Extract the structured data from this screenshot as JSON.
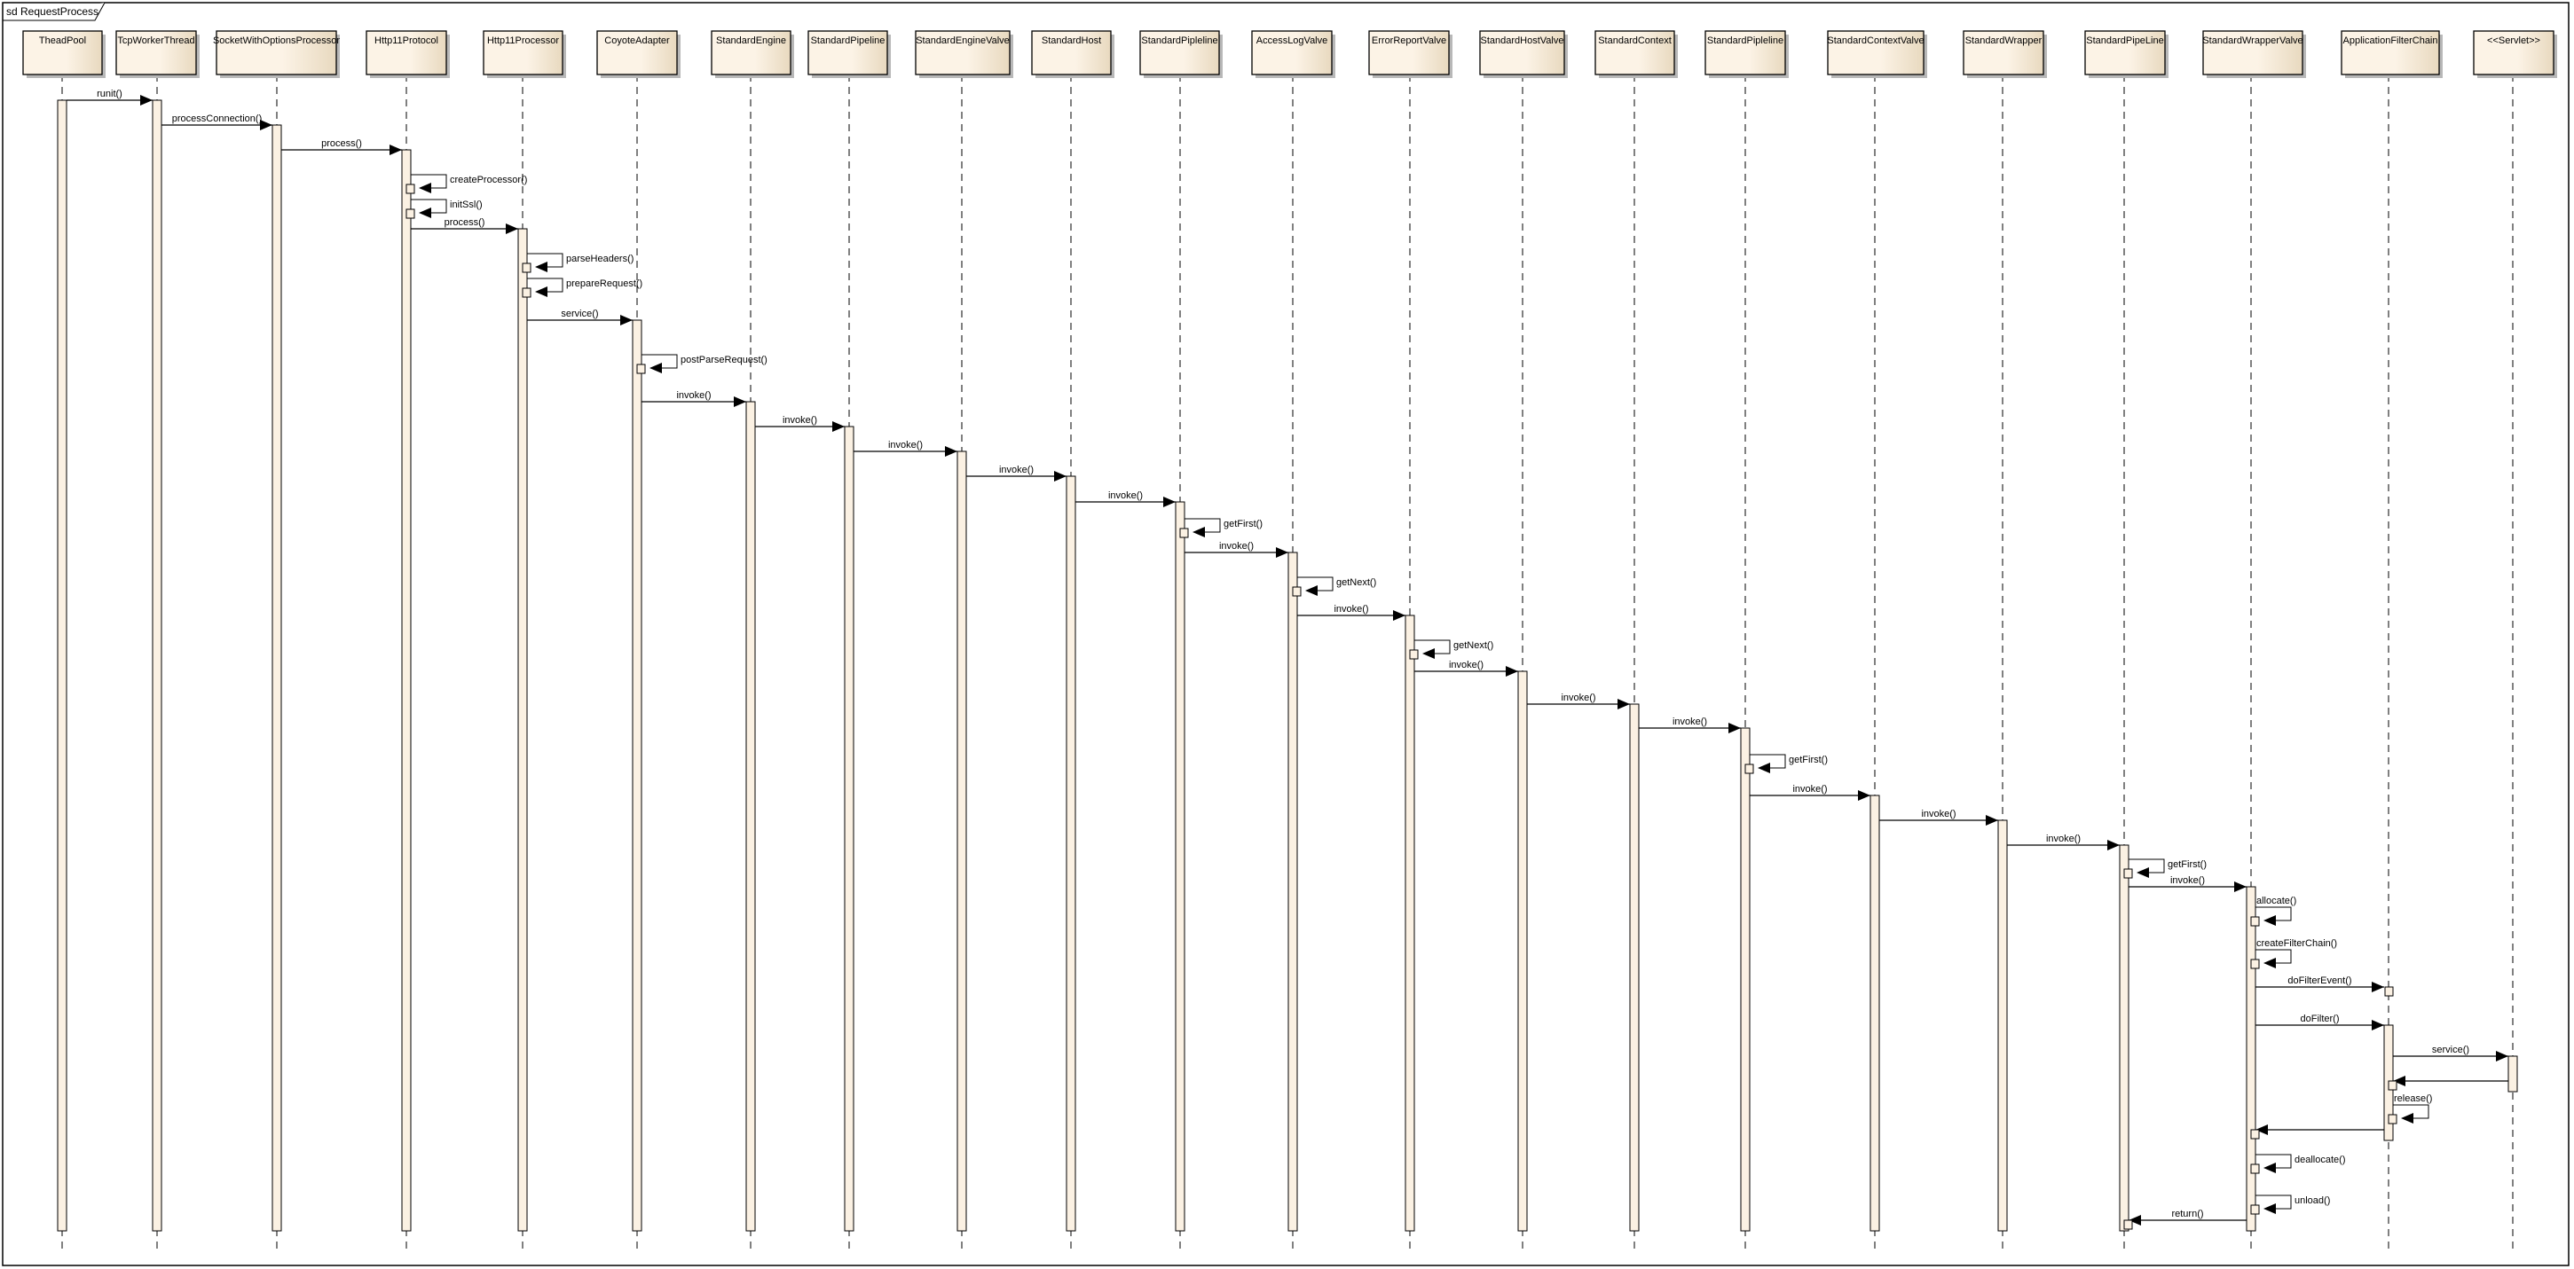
{
  "diagram": {
    "frame_title": "sd RequestProcess",
    "colors": {
      "box_light": "#fcf3e6",
      "box_dark": "#e8d9bf",
      "activation_fill": "#fbf1e3",
      "line": "#000000",
      "shadow": "#b8b8b8"
    },
    "participants": [
      "TheadPool",
      "TcpWorkerThread",
      "SocketWithOptionsProcessor",
      "Http11Protocol",
      "Http11Processor",
      "CoyoteAdapter",
      "StandardEngine",
      "StandardPipeline",
      "StandardEngineValve",
      "StandardHost",
      "StandardPipleline",
      "AccessLogValve",
      "ErrorReportValve",
      "StandardHostValve",
      "StandardContext",
      "StandardPipleline",
      "StandardContextValve",
      "StandardWrapper",
      "StandardPipeLine",
      "StandardWrapperValve",
      "ApplicationFilterChain",
      "<<Servlet>>"
    ],
    "messages": [
      {
        "from": 0,
        "to": 1,
        "label": "runit()"
      },
      {
        "from": 1,
        "to": 2,
        "label": "processConnection()"
      },
      {
        "from": 2,
        "to": 3,
        "label": "process()"
      },
      {
        "from": 3,
        "to": 3,
        "label": "createProcessor()",
        "label_side": "right"
      },
      {
        "from": 3,
        "to": 3,
        "label": "initSsl()",
        "label_side": "right"
      },
      {
        "from": 3,
        "to": 4,
        "label": "process()"
      },
      {
        "from": 4,
        "to": 4,
        "label": "parseHeaders()",
        "label_side": "right"
      },
      {
        "from": 4,
        "to": 4,
        "label": "prepareRequest()",
        "label_side": "right"
      },
      {
        "from": 4,
        "to": 5,
        "label": "service()"
      },
      {
        "from": 5,
        "to": 5,
        "label": "postParseRequest()",
        "label_side": "right"
      },
      {
        "from": 5,
        "to": 6,
        "label": "invoke()"
      },
      {
        "from": 6,
        "to": 7,
        "label": "invoke()"
      },
      {
        "from": 7,
        "to": 8,
        "label": "invoke()"
      },
      {
        "from": 8,
        "to": 9,
        "label": "invoke()"
      },
      {
        "from": 9,
        "to": 10,
        "label": "invoke()"
      },
      {
        "from": 10,
        "to": 10,
        "label": "getFirst()",
        "label_side": "right"
      },
      {
        "from": 10,
        "to": 11,
        "label": "invoke()"
      },
      {
        "from": 11,
        "to": 11,
        "label": "getNext()",
        "label_side": "right"
      },
      {
        "from": 11,
        "to": 12,
        "label": "invoke()"
      },
      {
        "from": 12,
        "to": 12,
        "label": "getNext()",
        "label_side": "right"
      },
      {
        "from": 12,
        "to": 13,
        "label": "invoke()"
      },
      {
        "from": 13,
        "to": 14,
        "label": "invoke()"
      },
      {
        "from": 14,
        "to": 15,
        "label": "invoke()"
      },
      {
        "from": 15,
        "to": 15,
        "label": "getFirst()",
        "label_side": "right"
      },
      {
        "from": 15,
        "to": 16,
        "label": "invoke()"
      },
      {
        "from": 16,
        "to": 17,
        "label": "invoke()"
      },
      {
        "from": 17,
        "to": 18,
        "label": "invoke()"
      },
      {
        "from": 18,
        "to": 18,
        "label": "getFirst()",
        "label_side": "right"
      },
      {
        "from": 18,
        "to": 19,
        "label": "invoke()"
      },
      {
        "from": 19,
        "to": 19,
        "label": "allocate()",
        "label_side": "above"
      },
      {
        "from": 19,
        "to": 19,
        "label": "createFilterChain()",
        "label_side": "above"
      },
      {
        "from": 19,
        "to": 20,
        "label": "doFilterEvent()"
      },
      {
        "from": 19,
        "to": 20,
        "label": "doFilter()"
      },
      {
        "from": 20,
        "to": 21,
        "label": "service()"
      },
      {
        "from": 21,
        "to": 20,
        "label": ""
      },
      {
        "from": 20,
        "to": 20,
        "label": "release()",
        "label_side": "above"
      },
      {
        "from": 20,
        "to": 19,
        "label": ""
      },
      {
        "from": 19,
        "to": 19,
        "label": "deallocate()",
        "label_side": "right"
      },
      {
        "from": 19,
        "to": 19,
        "label": "unload()",
        "label_side": "right"
      },
      {
        "from": 19,
        "to": 18,
        "label": "return()"
      }
    ]
  }
}
